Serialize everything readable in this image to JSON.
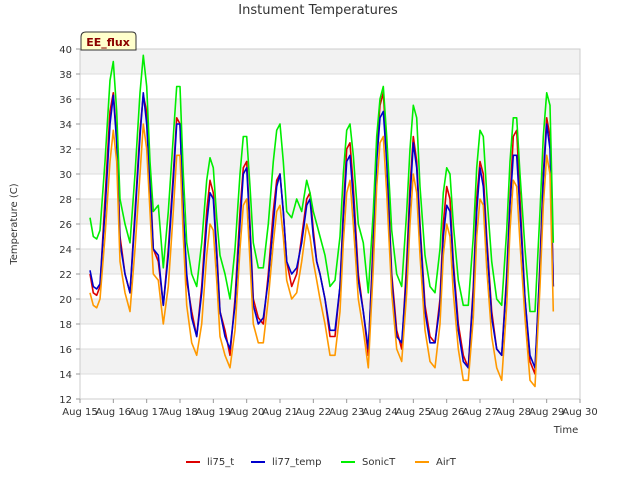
{
  "chart_data": {
    "type": "line",
    "title": "Instument Temperatures",
    "xlabel": "Time",
    "ylabel": "Temperature (C)",
    "badge": "EE_flux",
    "xlim": [
      15,
      30
    ],
    "ylim": [
      12,
      40
    ],
    "x_ticks": [
      15,
      16,
      17,
      18,
      19,
      20,
      21,
      22,
      23,
      24,
      25,
      26,
      27,
      28,
      29,
      30
    ],
    "x_tick_labels": [
      "Aug 15",
      "Aug 16",
      "Aug 17",
      "Aug 18",
      "Aug 19",
      "Aug 20",
      "Aug 21",
      "Aug 22",
      "Aug 23",
      "Aug 24",
      "Aug 25",
      "Aug 26",
      "Aug 27",
      "Aug 28",
      "Aug 29",
      "Aug 30"
    ],
    "y_ticks": [
      12,
      14,
      16,
      18,
      20,
      22,
      24,
      26,
      28,
      30,
      32,
      34,
      36,
      38,
      40
    ],
    "y_tick_labels": [
      "12",
      "14",
      "16",
      "18",
      "20",
      "22",
      "24",
      "26",
      "28",
      "30",
      "32",
      "34",
      "36",
      "38",
      "40"
    ],
    "legend_position": "bottom",
    "grid": true,
    "series": [
      {
        "name": "li75_t",
        "color": "#dd0000",
        "x": [
          15.3,
          15.4,
          15.5,
          15.6,
          15.75,
          15.9,
          16.0,
          16.1,
          16.2,
          16.35,
          16.5,
          16.65,
          16.8,
          16.9,
          17.0,
          17.1,
          17.2,
          17.35,
          17.5,
          17.65,
          17.8,
          17.9,
          18.0,
          18.1,
          18.2,
          18.35,
          18.5,
          18.65,
          18.8,
          18.9,
          19.0,
          19.1,
          19.2,
          19.35,
          19.5,
          19.65,
          19.8,
          19.9,
          20.0,
          20.1,
          20.2,
          20.35,
          20.5,
          20.65,
          20.8,
          20.9,
          21.0,
          21.1,
          21.2,
          21.35,
          21.5,
          21.65,
          21.8,
          21.9,
          22.0,
          22.1,
          22.2,
          22.35,
          22.5,
          22.65,
          22.8,
          22.9,
          23.0,
          23.1,
          23.2,
          23.35,
          23.5,
          23.65,
          23.8,
          23.9,
          24.0,
          24.1,
          24.2,
          24.35,
          24.5,
          24.65,
          24.8,
          24.9,
          25.0,
          25.1,
          25.2,
          25.35,
          25.5,
          25.65,
          25.8,
          25.9,
          26.0,
          26.1,
          26.2,
          26.35,
          26.5,
          26.65,
          26.8,
          26.9,
          27.0,
          27.1,
          27.2,
          27.35,
          27.5,
          27.65,
          27.8,
          27.9,
          28.0,
          28.1,
          28.2,
          28.35,
          28.5,
          28.65,
          28.8,
          28.9,
          29.0,
          29.1,
          29.2
        ],
        "y": [
          22.0,
          20.5,
          20.3,
          21.0,
          28.0,
          35.0,
          36.5,
          33.0,
          25.0,
          22.0,
          20.5,
          27.0,
          33.5,
          36.3,
          35.0,
          30.0,
          24.0,
          23.0,
          19.5,
          24.0,
          30.0,
          34.5,
          34.0,
          27.0,
          21.5,
          19.0,
          17.0,
          21.0,
          27.0,
          29.5,
          28.5,
          24.0,
          19.0,
          17.5,
          15.5,
          20.0,
          27.0,
          30.5,
          31.0,
          26.0,
          20.0,
          18.5,
          18.0,
          22.0,
          27.0,
          29.5,
          30.0,
          27.0,
          23.0,
          21.0,
          22.0,
          25.0,
          28.0,
          28.5,
          25.5,
          23.0,
          22.0,
          20.0,
          17.0,
          17.0,
          21.0,
          27.0,
          32.0,
          32.5,
          29.0,
          22.0,
          19.0,
          15.5,
          25.0,
          32.0,
          35.5,
          36.5,
          32.0,
          22.0,
          17.5,
          16.0,
          23.0,
          29.0,
          33.0,
          31.0,
          26.0,
          19.5,
          17.0,
          16.5,
          20.0,
          26.0,
          29.0,
          28.0,
          23.0,
          18.0,
          15.5,
          14.5,
          21.0,
          28.0,
          31.0,
          30.0,
          25.0,
          19.0,
          16.0,
          15.5,
          22.0,
          28.0,
          33.0,
          33.5,
          28.0,
          20.0,
          15.0,
          14.0,
          23.0,
          30.0,
          34.5,
          33.0,
          21.0
        ]
      },
      {
        "name": "li77_temp",
        "color": "#0000cc",
        "x": [
          15.3,
          15.4,
          15.5,
          15.6,
          15.75,
          15.9,
          16.0,
          16.1,
          16.2,
          16.35,
          16.5,
          16.65,
          16.8,
          16.9,
          17.0,
          17.1,
          17.2,
          17.35,
          17.5,
          17.65,
          17.8,
          17.9,
          18.0,
          18.1,
          18.2,
          18.35,
          18.5,
          18.65,
          18.8,
          18.9,
          19.0,
          19.1,
          19.2,
          19.35,
          19.5,
          19.65,
          19.8,
          19.9,
          20.0,
          20.1,
          20.2,
          20.35,
          20.5,
          20.65,
          20.8,
          20.9,
          21.0,
          21.1,
          21.2,
          21.35,
          21.5,
          21.65,
          21.8,
          21.9,
          22.0,
          22.1,
          22.2,
          22.35,
          22.5,
          22.65,
          22.8,
          22.9,
          23.0,
          23.1,
          23.2,
          23.35,
          23.5,
          23.65,
          23.8,
          23.9,
          24.0,
          24.1,
          24.2,
          24.35,
          24.5,
          24.65,
          24.8,
          24.9,
          25.0,
          25.1,
          25.2,
          25.35,
          25.5,
          25.65,
          25.8,
          25.9,
          26.0,
          26.1,
          26.2,
          26.35,
          26.5,
          26.65,
          26.8,
          26.9,
          27.0,
          27.1,
          27.2,
          27.35,
          27.5,
          27.65,
          27.8,
          27.9,
          28.0,
          28.1,
          28.2,
          28.35,
          28.5,
          28.65,
          28.8,
          28.9,
          29.0,
          29.1,
          29.2
        ],
        "y": [
          22.3,
          21.0,
          20.8,
          21.2,
          27.0,
          34.0,
          36.3,
          32.5,
          24.5,
          22.0,
          20.5,
          26.5,
          33.0,
          36.5,
          34.0,
          29.0,
          24.0,
          23.5,
          19.5,
          23.5,
          29.5,
          34.0,
          34.0,
          27.0,
          22.0,
          18.5,
          17.0,
          20.5,
          26.0,
          28.5,
          28.0,
          23.5,
          19.0,
          17.0,
          16.0,
          19.5,
          26.0,
          30.0,
          30.5,
          25.5,
          19.5,
          18.0,
          18.5,
          21.5,
          26.0,
          29.0,
          30.0,
          27.0,
          23.0,
          22.0,
          22.5,
          24.5,
          27.5,
          28.0,
          25.0,
          23.0,
          22.0,
          20.0,
          17.5,
          17.5,
          21.0,
          26.5,
          31.0,
          31.5,
          28.0,
          21.5,
          19.0,
          16.0,
          24.0,
          31.0,
          34.5,
          35.0,
          31.0,
          21.5,
          17.0,
          16.5,
          22.0,
          28.0,
          32.5,
          30.5,
          25.5,
          19.0,
          16.5,
          16.5,
          19.5,
          25.0,
          27.5,
          27.0,
          22.5,
          17.5,
          15.0,
          14.5,
          20.5,
          27.0,
          30.5,
          29.0,
          24.5,
          18.5,
          16.0,
          15.5,
          21.5,
          27.5,
          31.5,
          31.5,
          27.0,
          20.0,
          15.5,
          14.5,
          22.5,
          29.5,
          34.0,
          32.0,
          21.0
        ]
      },
      {
        "name": "SonicT",
        "color": "#00ee00",
        "x": [
          15.3,
          15.4,
          15.5,
          15.6,
          15.75,
          15.9,
          16.0,
          16.1,
          16.2,
          16.35,
          16.5,
          16.65,
          16.8,
          16.9,
          17.0,
          17.1,
          17.2,
          17.35,
          17.5,
          17.65,
          17.8,
          17.9,
          18.0,
          18.1,
          18.2,
          18.35,
          18.5,
          18.65,
          18.8,
          18.9,
          19.0,
          19.1,
          19.2,
          19.35,
          19.5,
          19.65,
          19.8,
          19.9,
          20.0,
          20.1,
          20.2,
          20.35,
          20.5,
          20.65,
          20.8,
          20.9,
          21.0,
          21.1,
          21.2,
          21.35,
          21.5,
          21.65,
          21.8,
          21.9,
          22.0,
          22.1,
          22.2,
          22.35,
          22.5,
          22.65,
          22.8,
          22.9,
          23.0,
          23.1,
          23.2,
          23.35,
          23.5,
          23.65,
          23.8,
          23.9,
          24.0,
          24.1,
          24.2,
          24.35,
          24.5,
          24.65,
          24.8,
          24.9,
          25.0,
          25.1,
          25.2,
          25.35,
          25.5,
          25.65,
          25.8,
          25.9,
          26.0,
          26.1,
          26.2,
          26.35,
          26.5,
          26.65,
          26.8,
          26.9,
          27.0,
          27.1,
          27.2,
          27.35,
          27.5,
          27.65,
          27.8,
          27.9,
          28.0,
          28.1,
          28.2,
          28.35,
          28.5,
          28.65,
          28.8,
          28.9,
          29.0,
          29.1,
          29.2
        ],
        "y": [
          26.5,
          25.0,
          24.8,
          25.5,
          31.0,
          37.5,
          39.0,
          35.0,
          28.0,
          26.0,
          24.5,
          30.0,
          36.5,
          39.5,
          37.0,
          31.0,
          27.0,
          27.5,
          22.5,
          27.0,
          33.0,
          37.0,
          37.0,
          30.0,
          24.5,
          22.0,
          21.0,
          24.5,
          29.5,
          31.3,
          30.5,
          26.5,
          23.5,
          22.0,
          20.0,
          24.0,
          30.0,
          33.0,
          33.0,
          29.0,
          24.5,
          22.5,
          22.5,
          26.0,
          31.0,
          33.5,
          34.0,
          31.0,
          27.0,
          26.5,
          28.0,
          27.0,
          29.5,
          28.5,
          27.0,
          26.0,
          25.0,
          23.5,
          21.0,
          21.5,
          25.0,
          30.0,
          33.5,
          34.0,
          31.5,
          26.0,
          24.5,
          20.5,
          27.0,
          33.0,
          36.0,
          37.0,
          33.0,
          25.5,
          22.0,
          21.0,
          27.0,
          32.0,
          35.5,
          34.5,
          29.0,
          23.5,
          21.0,
          20.5,
          24.0,
          28.5,
          30.5,
          30.0,
          26.0,
          21.5,
          19.5,
          19.5,
          25.0,
          30.5,
          33.5,
          33.0,
          28.5,
          23.0,
          20.0,
          19.5,
          25.5,
          31.0,
          34.5,
          34.5,
          30.0,
          24.0,
          19.0,
          19.0,
          27.0,
          33.0,
          36.5,
          35.5,
          24.5
        ]
      },
      {
        "name": "AirT",
        "color": "#ff9900",
        "x": [
          15.3,
          15.4,
          15.5,
          15.6,
          15.75,
          15.9,
          16.0,
          16.1,
          16.2,
          16.35,
          16.5,
          16.65,
          16.8,
          16.9,
          17.0,
          17.1,
          17.2,
          17.35,
          17.5,
          17.65,
          17.8,
          17.9,
          18.0,
          18.1,
          18.2,
          18.35,
          18.5,
          18.65,
          18.8,
          18.9,
          19.0,
          19.1,
          19.2,
          19.35,
          19.5,
          19.65,
          19.8,
          19.9,
          20.0,
          20.1,
          20.2,
          20.35,
          20.5,
          20.65,
          20.8,
          20.9,
          21.0,
          21.1,
          21.2,
          21.35,
          21.5,
          21.65,
          21.8,
          21.9,
          22.0,
          22.1,
          22.2,
          22.35,
          22.5,
          22.65,
          22.8,
          22.9,
          23.0,
          23.1,
          23.2,
          23.35,
          23.5,
          23.65,
          23.8,
          23.9,
          24.0,
          24.1,
          24.2,
          24.35,
          24.5,
          24.65,
          24.8,
          24.9,
          25.0,
          25.1,
          25.2,
          25.35,
          25.5,
          25.65,
          25.8,
          25.9,
          26.0,
          26.1,
          26.2,
          26.35,
          26.5,
          26.65,
          26.8,
          26.9,
          27.0,
          27.1,
          27.2,
          27.35,
          27.5,
          27.65,
          27.8,
          27.9,
          28.0,
          28.1,
          28.2,
          28.35,
          28.5,
          28.65,
          28.8,
          28.9,
          29.0,
          29.1,
          29.2
        ],
        "y": [
          20.5,
          19.5,
          19.3,
          20.0,
          25.0,
          31.0,
          33.5,
          31.0,
          23.0,
          20.5,
          19.0,
          24.0,
          30.0,
          34.0,
          32.0,
          27.0,
          22.0,
          21.5,
          18.0,
          21.0,
          27.0,
          31.5,
          31.5,
          25.0,
          19.5,
          16.5,
          15.5,
          18.0,
          23.5,
          26.0,
          25.5,
          21.5,
          17.0,
          15.5,
          14.5,
          17.5,
          24.0,
          27.5,
          28.0,
          23.0,
          18.0,
          16.5,
          16.5,
          20.0,
          24.5,
          27.0,
          27.5,
          25.0,
          21.5,
          20.0,
          20.5,
          23.0,
          26.0,
          25.0,
          23.0,
          21.5,
          20.0,
          18.0,
          15.5,
          15.5,
          19.0,
          24.5,
          28.5,
          29.5,
          26.0,
          20.0,
          17.5,
          14.5,
          22.5,
          29.0,
          32.5,
          33.0,
          28.5,
          20.5,
          16.0,
          15.0,
          20.5,
          26.0,
          30.0,
          28.5,
          23.5,
          17.5,
          15.0,
          14.5,
          18.0,
          23.5,
          26.0,
          25.0,
          20.5,
          16.0,
          13.5,
          13.5,
          18.5,
          25.0,
          28.0,
          27.5,
          22.5,
          17.0,
          14.5,
          13.5,
          19.5,
          25.5,
          29.5,
          29.0,
          24.5,
          18.5,
          13.5,
          13.0,
          21.0,
          27.5,
          31.5,
          30.0,
          19.0
        ]
      }
    ]
  }
}
